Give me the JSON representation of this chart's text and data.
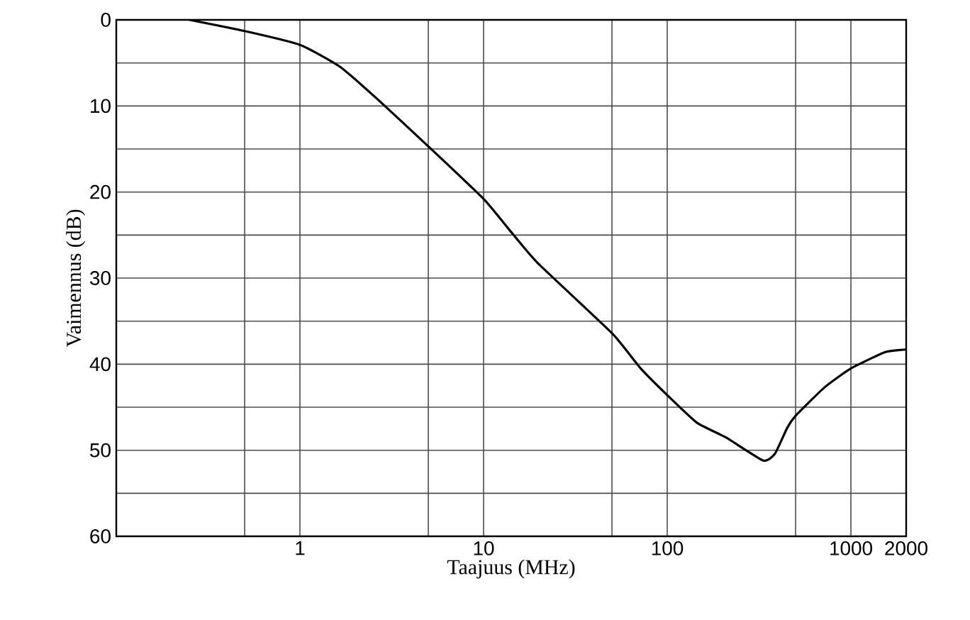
{
  "chart_data": {
    "type": "line",
    "xlabel": "Taajuus (MHz)",
    "ylabel": "Vaimennus (dB)",
    "x": [
      0.25,
      0.5,
      1,
      1.64,
      2.64,
      5,
      10,
      13.7,
      19.6,
      50,
      71.7,
      100,
      145,
      208,
      333,
      386,
      450,
      500,
      718,
      1000,
      1540,
      2000
    ],
    "series": [
      {
        "color": "#000000",
        "values": [
          0,
          1.3,
          2.9,
          5.4,
          9.2,
          14.7,
          20.8,
          24.3,
          28.2,
          36.4,
          40.5,
          43.6,
          46.8,
          48.5,
          51.2,
          50.4,
          47.4,
          46,
          42.7,
          40.5,
          38.6,
          38.3
        ]
      }
    ],
    "xlim": [
      0.1,
      2000
    ],
    "ylim": [
      60,
      0
    ],
    "log": "x",
    "grid": true,
    "xticks": [
      {
        "value": 0.5,
        "label": null
      },
      1,
      {
        "value": 5,
        "label": null
      },
      10,
      {
        "value": 50,
        "label": null
      },
      100,
      {
        "value": 500,
        "label": null
      },
      1000,
      2000
    ],
    "yticks": [
      0,
      {
        "value": 5,
        "label": null
      },
      10,
      {
        "value": 15,
        "label": null
      },
      20,
      {
        "value": 25,
        "label": null
      },
      30,
      {
        "value": 35,
        "label": null
      },
      40,
      {
        "value": 45,
        "label": null
      },
      50,
      {
        "value": 55,
        "label": null
      },
      60
    ]
  }
}
